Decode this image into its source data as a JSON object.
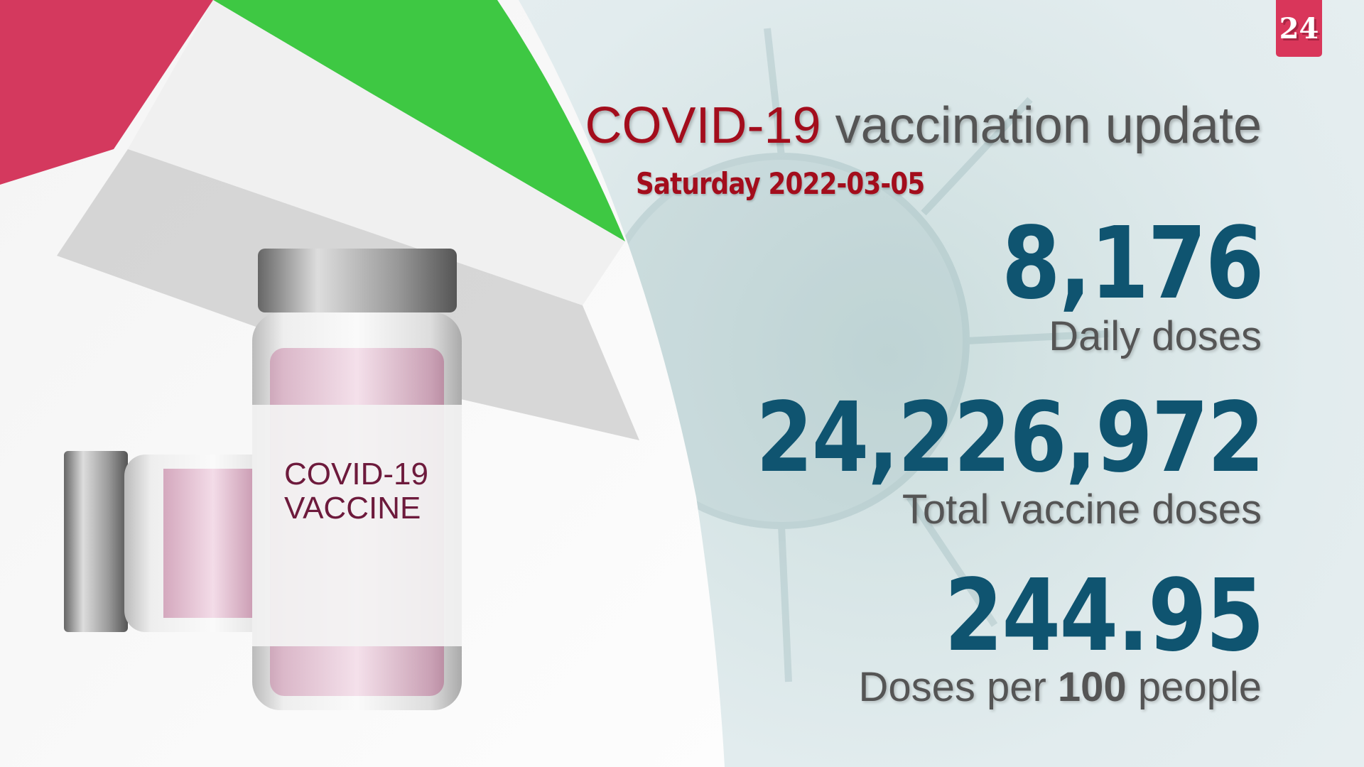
{
  "badge": {
    "text": "24",
    "color": "#d9365a"
  },
  "header": {
    "title_highlight": "COVID-19",
    "title_rest": " vaccination update",
    "date": "Saturday 2022-03-05"
  },
  "vial_label": {
    "line1": "COVID-19",
    "line2": "VACCINE"
  },
  "stats": [
    {
      "value": "8,176",
      "label": "Daily doses"
    },
    {
      "value": "24,226,972",
      "label": "Total vaccine doses"
    },
    {
      "value": "244.95",
      "label_pre": "Doses per ",
      "label_bold": "100",
      "label_post": " people"
    }
  ],
  "colors": {
    "accent_red": "#a30d1c",
    "number_blue": "#0f5470",
    "label_gray": "#555555"
  }
}
